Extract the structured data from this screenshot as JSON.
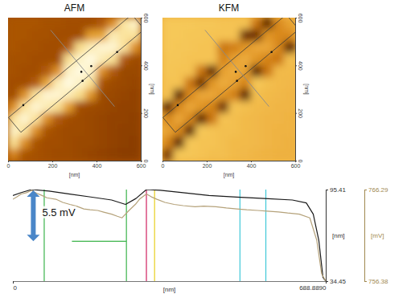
{
  "chart_data": [
    {
      "type": "heatmap",
      "title": "AFM",
      "x": [
        25,
        75,
        125,
        175,
        225,
        275,
        325,
        375,
        425,
        475,
        525,
        575
      ],
      "y": [
        575,
        525,
        475,
        425,
        375,
        325,
        275,
        225,
        175,
        125,
        75,
        25
      ],
      "cells": [
        [
          48,
          48,
          48,
          47,
          47,
          46,
          46,
          46,
          50,
          65,
          88,
          92
        ],
        [
          48,
          48,
          47,
          47,
          46,
          46,
          46,
          68,
          70,
          90,
          87,
          87
        ],
        [
          48,
          47,
          47,
          46,
          46,
          50,
          85,
          90,
          93,
          93,
          87,
          65
        ],
        [
          47,
          47,
          46,
          46,
          46,
          86,
          92,
          95,
          90,
          86,
          50,
          45
        ],
        [
          47,
          46,
          46,
          50,
          65,
          92,
          95,
          92,
          65,
          50,
          44,
          44
        ],
        [
          46,
          46,
          50,
          70,
          90,
          95,
          92,
          86,
          48,
          45,
          44,
          43
        ],
        [
          46,
          65,
          87,
          93,
          93,
          90,
          85,
          66,
          45,
          44,
          43,
          42
        ],
        [
          65,
          87,
          93,
          90,
          86,
          68,
          46,
          45,
          44,
          43,
          42,
          42
        ],
        [
          87,
          93,
          87,
          65,
          50,
          46,
          45,
          44,
          43,
          42,
          42,
          41
        ],
        [
          92,
          87,
          65,
          48,
          46,
          45,
          45,
          44,
          43,
          42,
          41,
          41
        ],
        [
          86,
          65,
          48,
          46,
          46,
          45,
          44,
          44,
          43,
          42,
          41,
          40
        ],
        [
          62,
          48,
          47,
          46,
          45,
          45,
          44,
          43,
          42,
          41,
          40,
          40
        ]
      ],
      "colors": [
        "#8a3c00",
        "#c26408",
        "#e49a28",
        "#f8d468",
        "#fffae0"
      ],
      "xlim": [
        0,
        600
      ],
      "ylim": [
        0,
        600
      ],
      "xticks": [
        0,
        200,
        400,
        600
      ],
      "yticks": [
        0,
        200,
        400,
        600
      ],
      "xlabel": "[nm]",
      "ylabel": "[nm]"
    },
    {
      "type": "heatmap",
      "title": "KFM",
      "x": [
        25,
        75,
        125,
        175,
        225,
        275,
        325,
        375,
        425,
        475,
        525,
        575
      ],
      "y": [
        575,
        525,
        475,
        425,
        375,
        325,
        275,
        225,
        175,
        125,
        75,
        25
      ],
      "cells": [
        [
          763.2,
          763.2,
          763.2,
          763.1,
          763.1,
          763.0,
          763.0,
          763.0,
          760.2,
          757.6,
          760.8,
          761.6
        ],
        [
          763.2,
          763.2,
          763.1,
          763.1,
          763.0,
          763.0,
          763.0,
          758.0,
          758.0,
          761.2,
          760.8,
          760.8
        ],
        [
          763.2,
          763.1,
          763.1,
          763.0,
          763.0,
          760.2,
          760.5,
          761.2,
          761.8,
          761.8,
          760.8,
          757.6
        ],
        [
          763.1,
          763.1,
          763.0,
          763.0,
          763.0,
          760.6,
          761.6,
          762.0,
          761.2,
          760.6,
          760.2,
          762.8
        ],
        [
          763.1,
          763.0,
          763.0,
          760.2,
          757.6,
          761.6,
          762.0,
          761.6,
          757.6,
          760.2,
          762.6,
          762.6
        ],
        [
          763.0,
          763.0,
          760.2,
          758.0,
          761.2,
          762.0,
          761.6,
          760.6,
          763.2,
          762.8,
          762.6,
          762.5
        ],
        [
          763.0,
          757.6,
          760.8,
          761.8,
          761.8,
          761.2,
          760.5,
          757.6,
          762.8,
          762.6,
          762.5,
          762.4
        ],
        [
          757.6,
          760.8,
          761.8,
          761.2,
          760.6,
          758.0,
          763.0,
          762.8,
          762.6,
          762.5,
          762.4,
          762.4
        ],
        [
          760.8,
          761.8,
          760.8,
          757.6,
          760.2,
          763.0,
          762.8,
          762.6,
          762.5,
          762.4,
          762.4,
          762.3
        ],
        [
          761.6,
          760.8,
          757.6,
          763.2,
          763.0,
          762.8,
          762.8,
          762.6,
          762.5,
          762.4,
          762.3,
          762.3
        ],
        [
          760.6,
          757.6,
          763.2,
          763.0,
          763.0,
          762.8,
          762.6,
          762.6,
          762.5,
          762.4,
          762.3,
          762.2
        ],
        [
          758.2,
          763.2,
          763.1,
          763.0,
          762.8,
          762.8,
          762.6,
          762.5,
          762.4,
          762.3,
          762.2,
          762.2
        ]
      ],
      "colors": [
        "#5a2400",
        "#a04c00",
        "#d47e10",
        "#eca838",
        "#f6c858"
      ],
      "xlim": [
        0,
        600
      ],
      "ylim": [
        0,
        600
      ],
      "xticks": [
        0,
        200,
        400,
        600
      ],
      "yticks": [
        0,
        200,
        400,
        600
      ],
      "xlabel": "[nm]",
      "ylabel": "[nm]"
    },
    {
      "type": "line",
      "xlim": [
        0,
        688.889
      ],
      "xticks": [
        0,
        {
          "value": 688.889,
          "label": "688.8890"
        }
      ],
      "xlabel": "[nm]",
      "ylim": [
        34.45,
        95.41
      ],
      "yticks": [
        34.45,
        95.41
      ],
      "ylabel": "[nm]",
      "y2lim": [
        756.38,
        766.29
      ],
      "y2ticks": [
        756.38,
        766.29
      ],
      "y2label": "[mV]",
      "series": [
        {
          "color": "#1a1a1a",
          "x": [
            0,
            18.4,
            41.3,
            79.6,
            125.5,
            171.5,
            217.4,
            248.0,
            271.0,
            294.0,
            324.6,
            370.5,
            431.8,
            493.0,
            554.2,
            615.5,
            646.1,
            661.4,
            673.6,
            682.8,
            688.9
          ],
          "values": [
            91.45,
            93.43,
            95.41,
            94.42,
            92.44,
            90.45,
            88.47,
            85.5,
            89.46,
            95.41,
            94.91,
            93.43,
            91.45,
            90.45,
            89.46,
            88.47,
            86.49,
            79.06,
            61.71,
            36.93,
            34.45
          ]
        },
        {
          "color": "#b5a27a",
          "axis": "y2",
          "x": [
            0,
            9,
            18.4,
            30,
            41.3,
            52,
            64.3,
            75,
            94.9,
            110,
            125.5,
            140,
            156.2,
            170,
            186.8,
            200,
            217.4,
            230,
            240.4,
            255.7,
            270,
            278.7,
            294.0,
            305,
            317.3,
            335,
            355.2,
            375,
            401.1,
            420,
            447.1,
            470,
            493.0,
            515,
            539.0,
            560,
            585.0,
            605,
            630.8,
            653.8,
            669.1,
            679.8,
            688.9
          ],
          "values": [
            765.24,
            765.5,
            765.81,
            765.95,
            766.21,
            765.9,
            765.65,
            765.4,
            765.24,
            764.9,
            764.68,
            764.5,
            764.19,
            764.1,
            764.03,
            763.85,
            763.63,
            763.4,
            763.23,
            764.03,
            764.7,
            765.24,
            765.81,
            765.5,
            765.24,
            764.9,
            764.68,
            764.55,
            764.44,
            764.5,
            764.44,
            764.3,
            764.19,
            764.1,
            764.03,
            763.95,
            763.87,
            763.75,
            763.63,
            763.23,
            760.81,
            757.18,
            756.38
          ]
        }
      ],
      "cursor_x": [
        69,
        250,
        294,
        312,
        500,
        557
      ],
      "cursor_colors": [
        "#3cb44b",
        "#3cb44b",
        "#d02060",
        "#e8d020",
        "#40c8d8",
        "#40c8d8"
      ],
      "annotations": [
        {
          "text": "5.5 mV",
          "x": 45,
          "y_from": 766.2,
          "y_to": 760.7,
          "axis": "y2",
          "level_x": [
            130,
            250
          ]
        }
      ]
    }
  ]
}
